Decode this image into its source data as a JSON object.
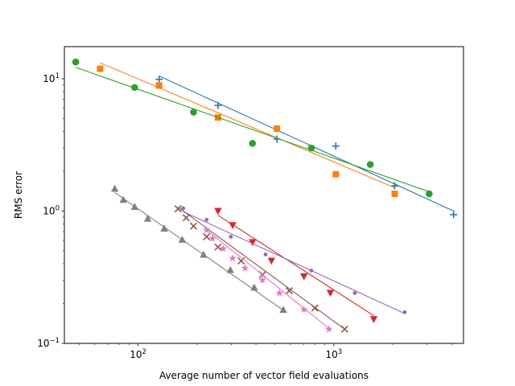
{
  "chart_data": {
    "type": "scatter",
    "xlabel": "Average number of vector field evaluations",
    "ylabel": "RMS error",
    "xscale": "log",
    "yscale": "log",
    "xlim": [
      42,
      4600
    ],
    "ylim": [
      0.1,
      17.5
    ],
    "x_ticks": [
      {
        "value": 100,
        "base": "10",
        "exp": "2"
      },
      {
        "value": 1000,
        "base": "10",
        "exp": "3"
      }
    ],
    "y_ticks": [
      {
        "value": 0.1,
        "base": "10",
        "exp": "−1"
      },
      {
        "value": 1,
        "base": "10",
        "exp": "0"
      },
      {
        "value": 10,
        "base": "10",
        "exp": "1"
      }
    ],
    "grid": false,
    "series": [
      {
        "color": "#1f77b4",
        "marker": "plus",
        "x": [
          128,
          256,
          512,
          1024,
          2048,
          4096
        ],
        "y": [
          9.9,
          6.3,
          3.5,
          3.1,
          1.55,
          0.94
        ],
        "fit": {
          "x": [
            128,
            4096
          ],
          "y": [
            10.5,
            1.0
          ]
        }
      },
      {
        "color": "#ff7f0e",
        "marker": "square",
        "x": [
          64,
          128,
          256,
          512,
          1024,
          2048
        ],
        "y": [
          11.9,
          8.9,
          5.1,
          4.2,
          1.9,
          1.35
        ],
        "fit": {
          "x": [
            64,
            2048
          ],
          "y": [
            13.2,
            1.5
          ]
        }
      },
      {
        "color": "#2ca02c",
        "marker": "circle",
        "x": [
          48,
          96,
          192,
          384,
          768,
          1536,
          3072
        ],
        "y": [
          13.4,
          8.6,
          5.6,
          3.25,
          3.0,
          2.25,
          1.35
        ],
        "fit": {
          "x": [
            48,
            3072
          ],
          "y": [
            12.2,
            1.4
          ]
        }
      },
      {
        "color": "#d62728",
        "marker": "triangle-down",
        "x": [
          256,
          304,
          384,
          480,
          704,
          960,
          1600
        ],
        "y": [
          1.0,
          0.78,
          0.58,
          0.42,
          0.32,
          0.24,
          0.152
        ],
        "fit": {
          "x": [
            256,
            1600
          ],
          "y": [
            0.93,
            0.162
          ]
        }
      },
      {
        "color": "#9467bd",
        "marker": "point",
        "x": [
          170,
          224,
          298,
          448,
          768,
          1280,
          2304
        ],
        "y": [
          1.05,
          0.86,
          0.64,
          0.47,
          0.355,
          0.24,
          0.172
        ],
        "fit": {
          "x": [
            170,
            2304
          ],
          "y": [
            0.99,
            0.168
          ]
        }
      },
      {
        "color": "#8c564b",
        "marker": "x",
        "x": [
          160,
          176,
          192,
          224,
          256,
          336,
          432,
          592,
          800,
          1136
        ],
        "y": [
          1.04,
          0.89,
          0.77,
          0.64,
          0.535,
          0.42,
          0.33,
          0.25,
          0.185,
          0.128
        ],
        "fit": {
          "x": [
            160,
            1136
          ],
          "y": [
            1.07,
            0.128
          ]
        }
      },
      {
        "color": "#e377c2",
        "marker": "star",
        "x": [
          224,
          240,
          272,
          304,
          352,
          432,
          528,
          704,
          944
        ],
        "y": [
          0.72,
          0.62,
          0.52,
          0.44,
          0.37,
          0.3,
          0.24,
          0.18,
          0.128
        ],
        "fit": {
          "x": [
            224,
            944
          ],
          "y": [
            0.72,
            0.13
          ]
        }
      },
      {
        "color": "#7f7f7f",
        "marker": "triangle-up",
        "x": [
          76,
          84,
          96,
          112,
          136,
          168,
          216,
          296,
          392,
          552
        ],
        "y": [
          1.48,
          1.22,
          1.08,
          0.88,
          0.74,
          0.61,
          0.47,
          0.36,
          0.265,
          0.18
        ],
        "fit": {
          "x": [
            76,
            552
          ],
          "y": [
            1.38,
            0.178
          ]
        }
      }
    ]
  }
}
